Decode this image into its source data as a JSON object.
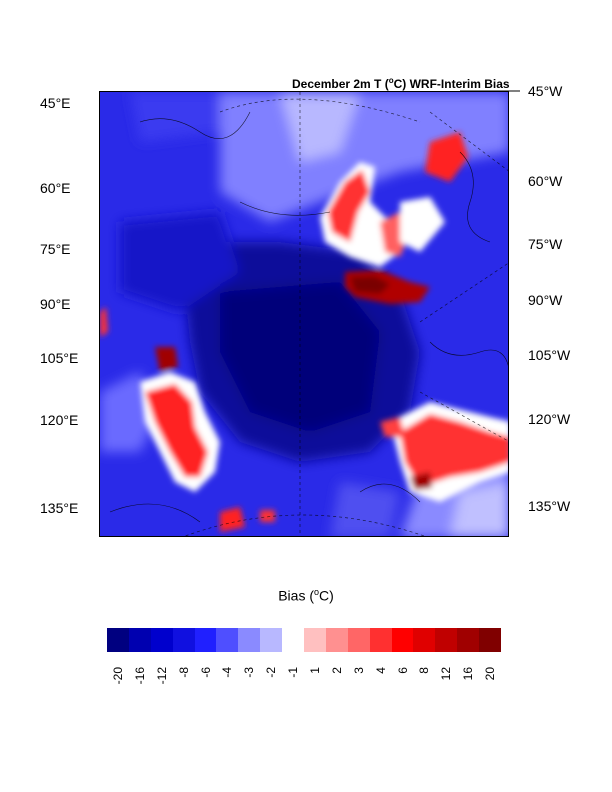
{
  "title": {
    "prefix": "December 2m T (",
    "unit_sup": "o",
    "suffix": "C) WRF-Interim Bias"
  },
  "axes": {
    "left_labels": [
      "45°E",
      "60°E",
      "75°E",
      "90°E",
      "105°E",
      "120°E",
      "135°E"
    ],
    "right_labels": [
      "45°W",
      "60°W",
      "75°W",
      "90°W",
      "105°W",
      "120°W",
      "135°W"
    ]
  },
  "legend": {
    "title_prefix": "Bias (",
    "title_sup": "o",
    "title_suffix": "C)",
    "colors": [
      "#000080",
      "#0000b0",
      "#0000cd",
      "#1010e0",
      "#2020ff",
      "#4f4fff",
      "#8a8aff",
      "#b8b8ff",
      "#ffffff",
      "#ffc0c0",
      "#ff9090",
      "#ff6666",
      "#ff3030",
      "#ff0000",
      "#e00000",
      "#c00000",
      "#a00000",
      "#800000"
    ],
    "ticks": [
      "-20",
      "-16",
      "-12",
      "-8",
      "-6",
      "-4",
      "-3",
      "-2",
      "-1",
      "1",
      "2",
      "3",
      "4",
      "6",
      "8",
      "12",
      "16",
      "20"
    ]
  },
  "colors": {
    "deep_blue": "#0a0aa0",
    "mid_blue": "#2a2ae8",
    "light_blue": "#9a9aff",
    "red": "#ff2020",
    "dark_red": "#b00000"
  }
}
